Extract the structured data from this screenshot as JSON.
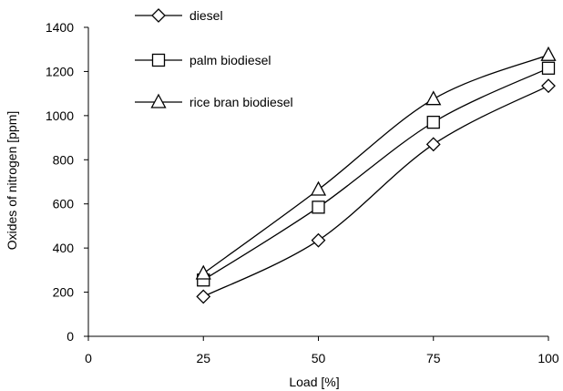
{
  "chart_data": {
    "type": "line",
    "title": "",
    "xlabel": "Load [%]",
    "ylabel": "Oxides of nitrogen [ppm]",
    "x": [
      25,
      50,
      75,
      100
    ],
    "xlim": [
      0,
      100
    ],
    "ylim": [
      0,
      1400
    ],
    "x_ticks": [
      0,
      25,
      50,
      75,
      100
    ],
    "y_ticks": [
      0,
      200,
      400,
      600,
      800,
      1000,
      1200,
      1400
    ],
    "grid": false,
    "legend_position": "top-left",
    "series": [
      {
        "name": "diesel",
        "marker": "diamond",
        "values": [
          180,
          435,
          870,
          1135
        ]
      },
      {
        "name": "palm biodiesel",
        "marker": "square",
        "values": [
          255,
          585,
          970,
          1215
        ]
      },
      {
        "name": "rice bran biodiesel",
        "marker": "triangle",
        "values": [
          285,
          665,
          1075,
          1275
        ]
      }
    ],
    "colors": {
      "line": "#000000",
      "marker_fill": "#ffffff",
      "background": "#ffffff"
    }
  }
}
